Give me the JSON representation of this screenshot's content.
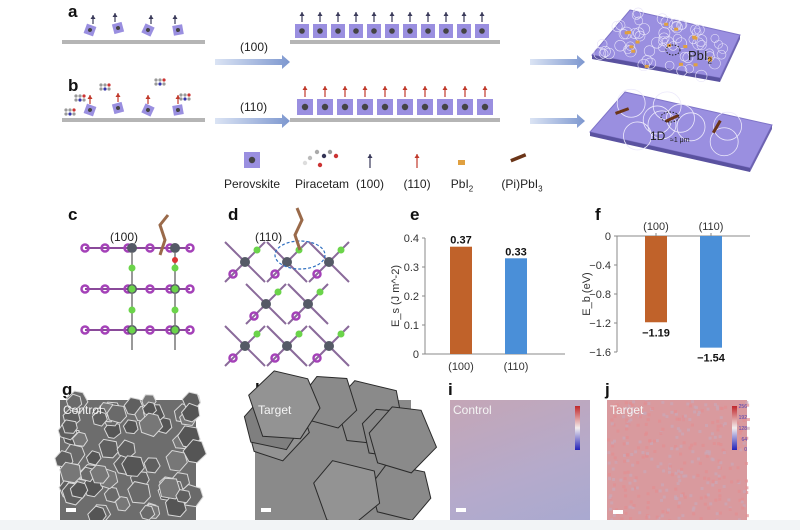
{
  "panels": {
    "a": "a",
    "b": "b",
    "c": "c",
    "d": "d",
    "e": "e",
    "f": "f",
    "g": "g",
    "h": "h",
    "i": "i",
    "j": "j"
  },
  "schematic": {
    "row_a_arrow_label": "(100)",
    "row_b_arrow_label": "(110)",
    "film_a_label": "PbI",
    "film_a_label_sub": "2",
    "film_b_label_1d": "1D",
    "film_b_label_size": "≈1 μm"
  },
  "legend": [
    {
      "label": "Perovskite",
      "sub": ""
    },
    {
      "label": "Piracetam",
      "sub": ""
    },
    {
      "label": "(100)",
      "sub": ""
    },
    {
      "label": "(110)",
      "sub": ""
    },
    {
      "label": "PbI",
      "sub": "2"
    },
    {
      "label": "(Pi)PbI",
      "sub": "3"
    }
  ],
  "structures": {
    "c_label": "(100)",
    "d_label": "(110)"
  },
  "colors": {
    "orange": "#c0622a",
    "blue": "#4a8fd8",
    "perovskite": "#9a8fe0",
    "arrow_100": "#3a3a5a",
    "arrow_110": "#c0392b"
  },
  "chart_data": [
    {
      "type": "bar",
      "categories": [
        "(100)",
        "(110)"
      ],
      "values": [
        0.37,
        0.33
      ],
      "data_labels": [
        "0.37",
        "0.33"
      ],
      "ylabel": "E_s (J m^-2)",
      "ylabel_main": "E",
      "ylabel_sub": "s",
      "ylabel_rest": " (J m",
      "ylabel_sup": "−2",
      "ylabel_end": ")",
      "ylim": [
        0,
        0.4
      ],
      "yticks": [
        "0",
        "0.1",
        "0.2",
        "0.3",
        "0.4"
      ],
      "colors": [
        "#c0622a",
        "#4a8fd8"
      ]
    },
    {
      "type": "bar",
      "categories": [
        "(100)",
        "(110)"
      ],
      "values": [
        -1.19,
        -1.54
      ],
      "data_labels": [
        "−1.19",
        "−1.54"
      ],
      "ylabel": "E_b (eV)",
      "ylabel_main": "E",
      "ylabel_sub": "b",
      "ylabel_rest": " (eV)",
      "ylim": [
        -1.6,
        0
      ],
      "yticks": [
        "0",
        "-0.4",
        "-0.8",
        "-1.2",
        "-1.6"
      ],
      "colors": [
        "#c0622a",
        "#4a8fd8"
      ]
    }
  ],
  "images": {
    "g_label": "Control",
    "h_label": "Target",
    "i_label": "Control",
    "j_label": "Target",
    "colorbar_ticks": [
      "256",
      "192",
      "128",
      "64",
      "0"
    ]
  }
}
